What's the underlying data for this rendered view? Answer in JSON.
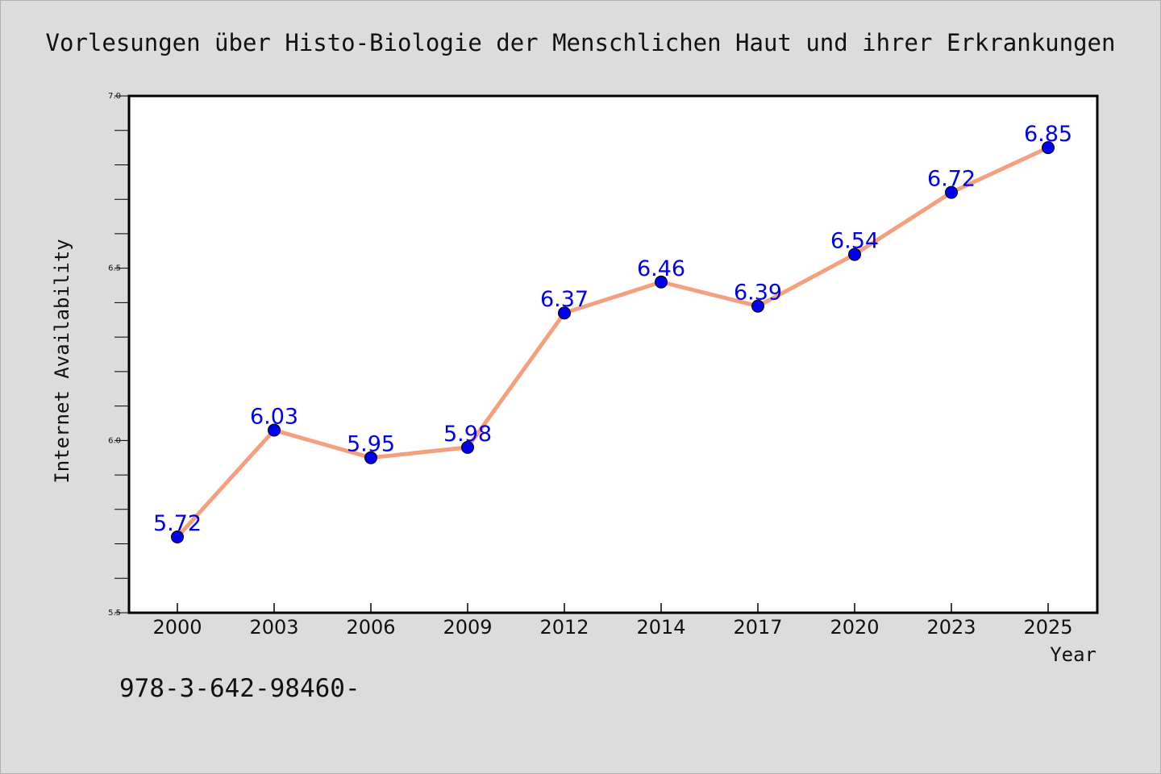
{
  "figure": {
    "background": "#dcdcdc",
    "footer_text": "978-3-642-98460-"
  },
  "chart_data": {
    "type": "line",
    "title": "Vorlesungen über Histo-Biologie der Menschlichen Haut und ihrer Erkrankungen",
    "xlabel": "Year",
    "ylabel": "Internet Availability",
    "categories": [
      "2000",
      "2003",
      "2006",
      "2009",
      "2012",
      "2014",
      "2017",
      "2020",
      "2023",
      "2025"
    ],
    "series": [
      {
        "values": [
          5.72,
          6.03,
          5.95,
          5.98,
          6.37,
          6.46,
          6.39,
          6.54,
          6.72,
          6.85
        ],
        "data_labels": [
          "5.72",
          "6.03",
          "5.95",
          "5.98",
          "6.37",
          "6.46",
          "6.39",
          "6.54",
          "6.72",
          "6.85"
        ],
        "line_color": "#f4a07e",
        "marker_color": "#0000ee",
        "label_color": "#0000ee"
      }
    ],
    "ylim": [
      5.5,
      7.0
    ],
    "yticks": [
      "5.5",
      "6.0",
      "6.5",
      "7.0"
    ],
    "grid": false,
    "legend": "none"
  }
}
